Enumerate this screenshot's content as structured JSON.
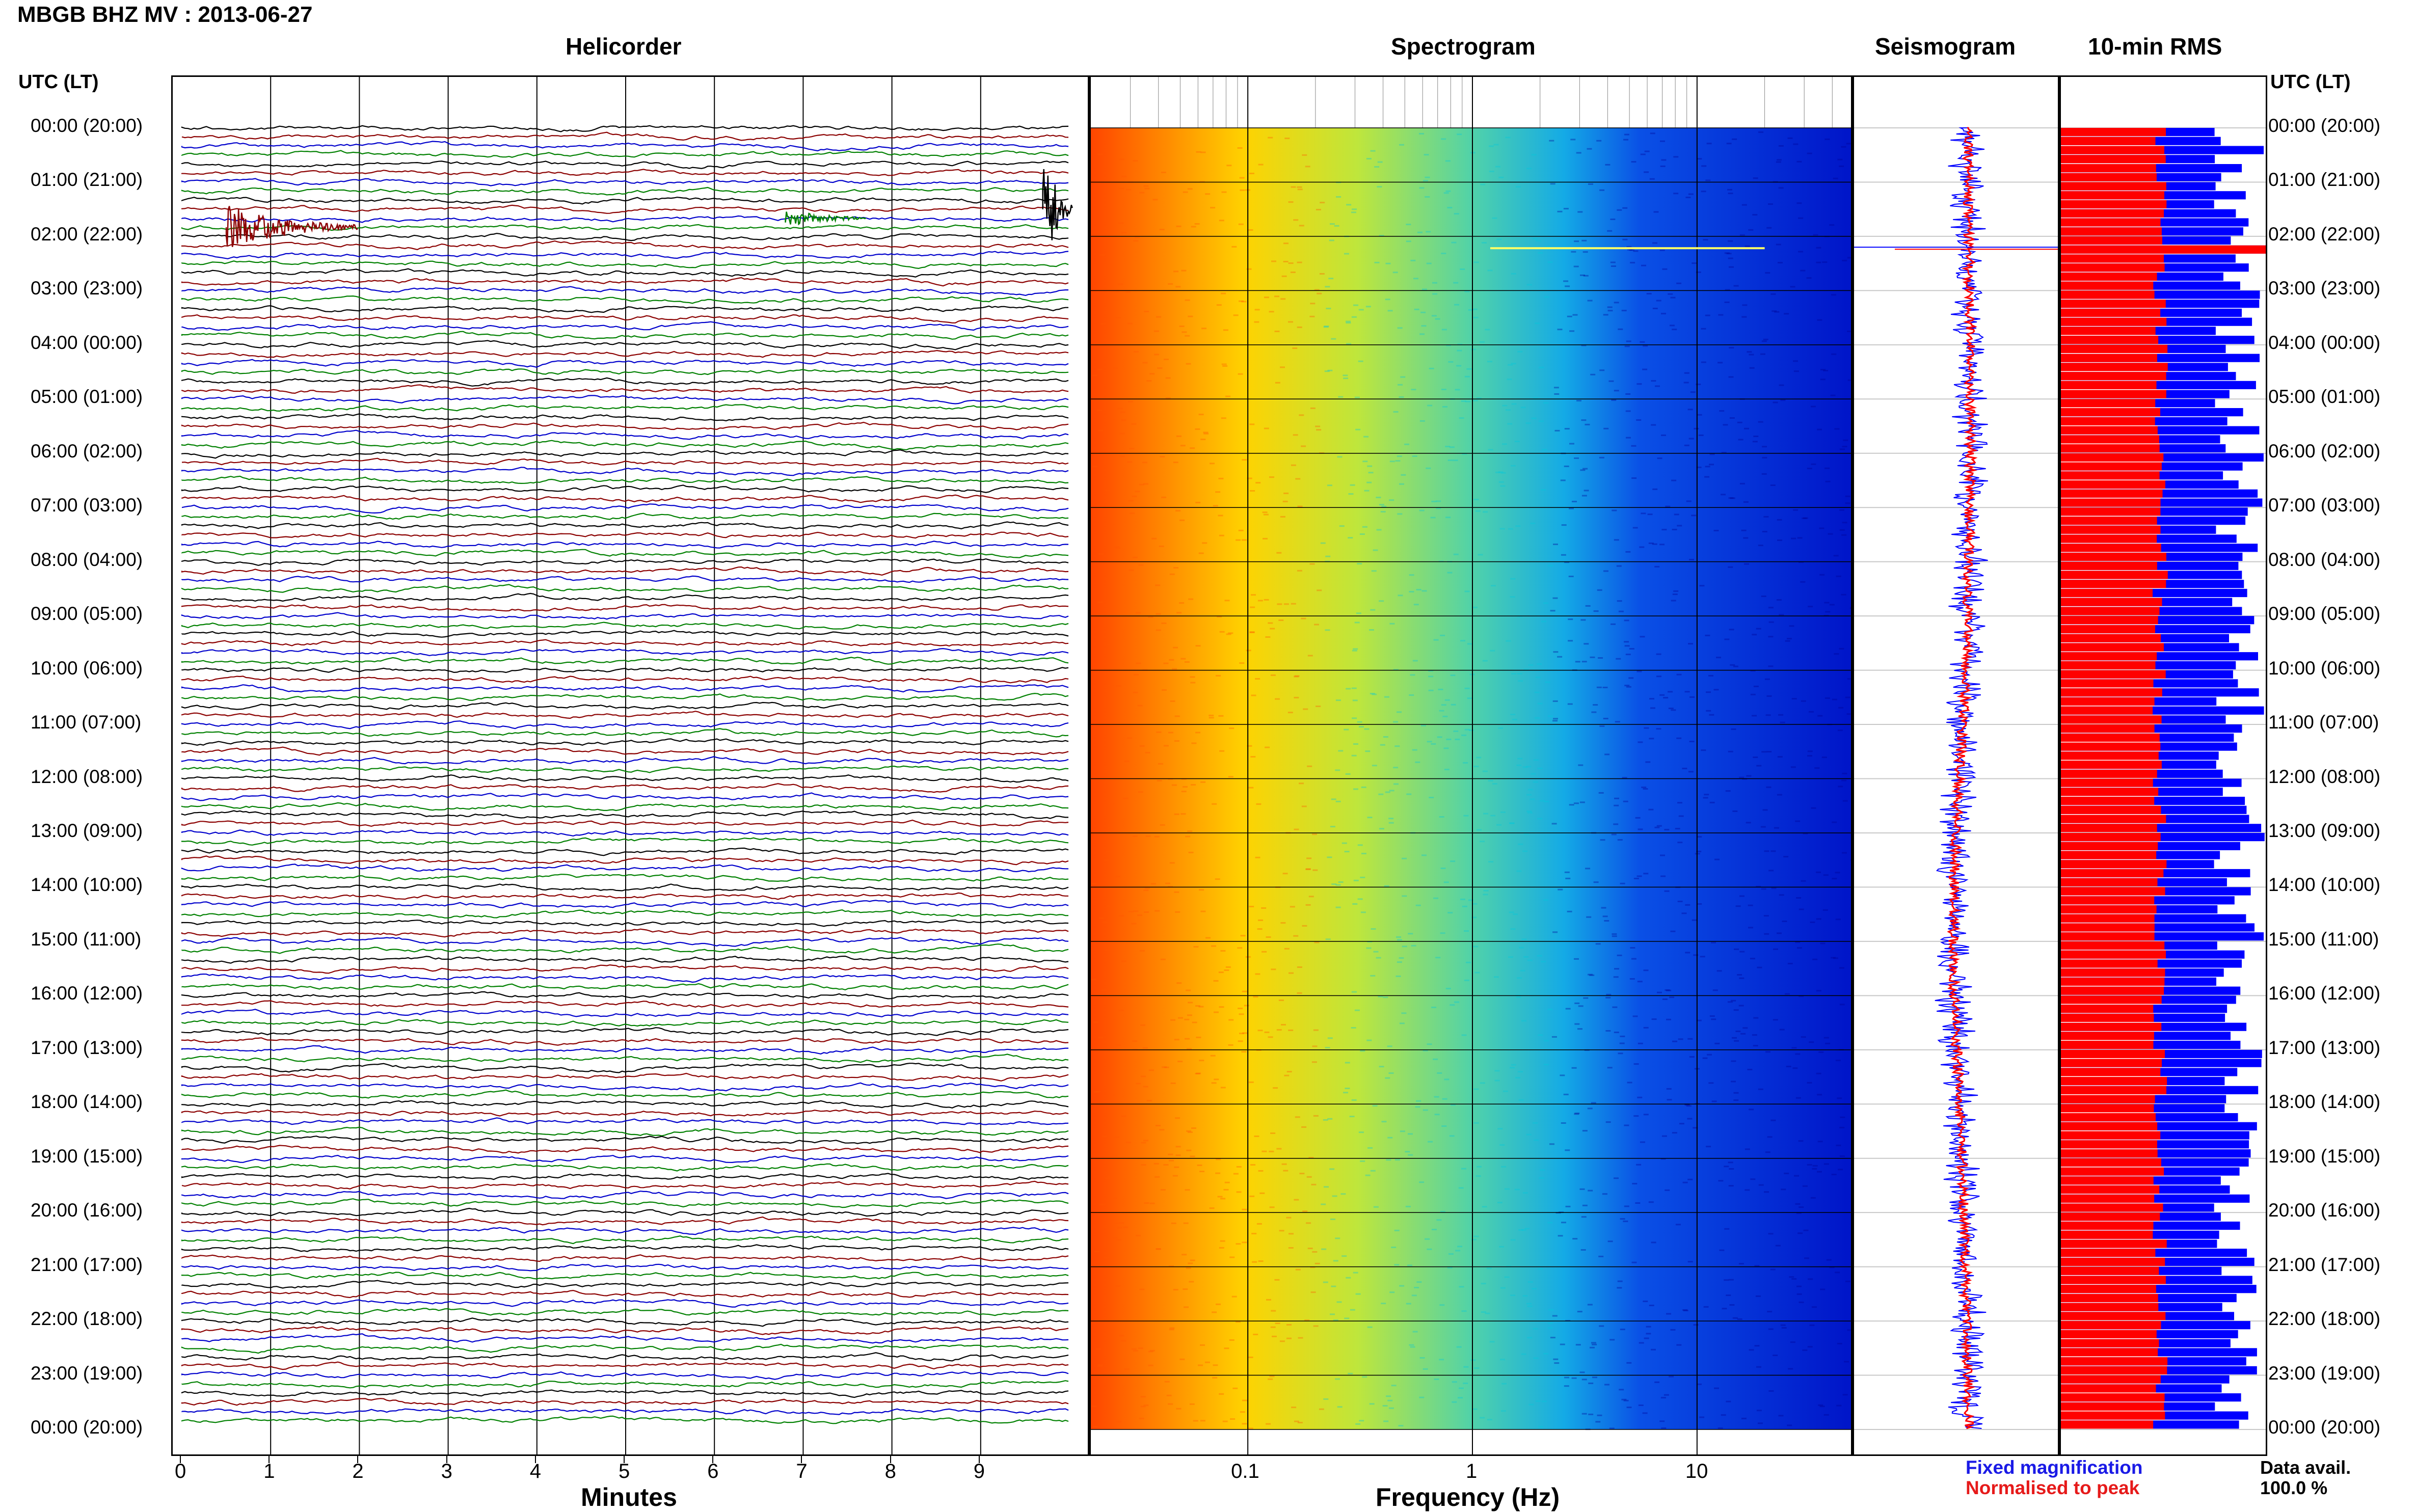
{
  "header": {
    "title": "MBGB BHZ MV : 2013-06-27"
  },
  "panels": {
    "helicorder": "Helicorder",
    "spectrogram": "Spectrogram",
    "seismogram": "Seismogram",
    "rms": "10-min RMS"
  },
  "axis": {
    "time_header_left": "UTC (LT)",
    "time_header_right": "UTC (LT)",
    "minutes_label": "Minutes",
    "frequency_label": "Frequency (Hz)",
    "minute_ticks": [
      "0",
      "1",
      "2",
      "3",
      "4",
      "5",
      "6",
      "7",
      "8",
      "9"
    ],
    "freq_ticks": [
      "0.1",
      "1",
      "10"
    ]
  },
  "time_labels": [
    "00:00 (20:00)",
    "01:00 (21:00)",
    "02:00 (22:00)",
    "03:00 (23:00)",
    "04:00 (00:00)",
    "05:00 (01:00)",
    "06:00 (02:00)",
    "07:00 (03:00)",
    "08:00 (04:00)",
    "09:00 (05:00)",
    "10:00 (06:00)",
    "11:00 (07:00)",
    "12:00 (08:00)",
    "13:00 (09:00)",
    "14:00 (10:00)",
    "15:00 (11:00)",
    "16:00 (12:00)",
    "17:00 (13:00)",
    "18:00 (14:00)",
    "19:00 (15:00)",
    "20:00 (16:00)",
    "21:00 (17:00)",
    "22:00 (18:00)",
    "23:00 (19:00)",
    "00:00 (20:00)"
  ],
  "legend": {
    "fixed": "Fixed magnification",
    "normalised": "Normalised to peak"
  },
  "data_avail": {
    "label": "Data avail.",
    "value": "100.0 %"
  },
  "colors": {
    "trace_cycle": [
      "#000000",
      "#8b0000",
      "#0000cc",
      "#008000"
    ],
    "rms_fixed": "#0000ff",
    "rms_normalised": "#ff0000"
  },
  "chart_data": [
    {
      "type": "line",
      "name": "Helicorder",
      "xlabel": "Minutes",
      "xlim": [
        0,
        10
      ],
      "rows_per_hour": 6,
      "hours": 24,
      "events": [
        {
          "time": "01:50",
          "minute": 0.5,
          "color": "#8b0000"
        },
        {
          "time": "01:30",
          "minute": 9.7,
          "color": "#000000"
        },
        {
          "time": "01:40",
          "minute": 6.8,
          "color": "#008000"
        }
      ]
    },
    {
      "type": "heatmap",
      "name": "Spectrogram",
      "xlabel": "Frequency (Hz)",
      "x_scale": "log",
      "xlim": [
        0.02,
        50
      ],
      "colormap": "jet"
    },
    {
      "type": "line",
      "name": "Seismogram",
      "series": [
        {
          "name": "Fixed magnification",
          "color": "#0000ff"
        },
        {
          "name": "Normalised to peak",
          "color": "#ff0000"
        }
      ]
    },
    {
      "type": "bar",
      "name": "10-min RMS",
      "series": [
        {
          "name": "Fixed magnification",
          "color": "#0000ff"
        },
        {
          "name": "Normalised to peak",
          "color": "#ff0000"
        }
      ],
      "bins": 144
    }
  ]
}
